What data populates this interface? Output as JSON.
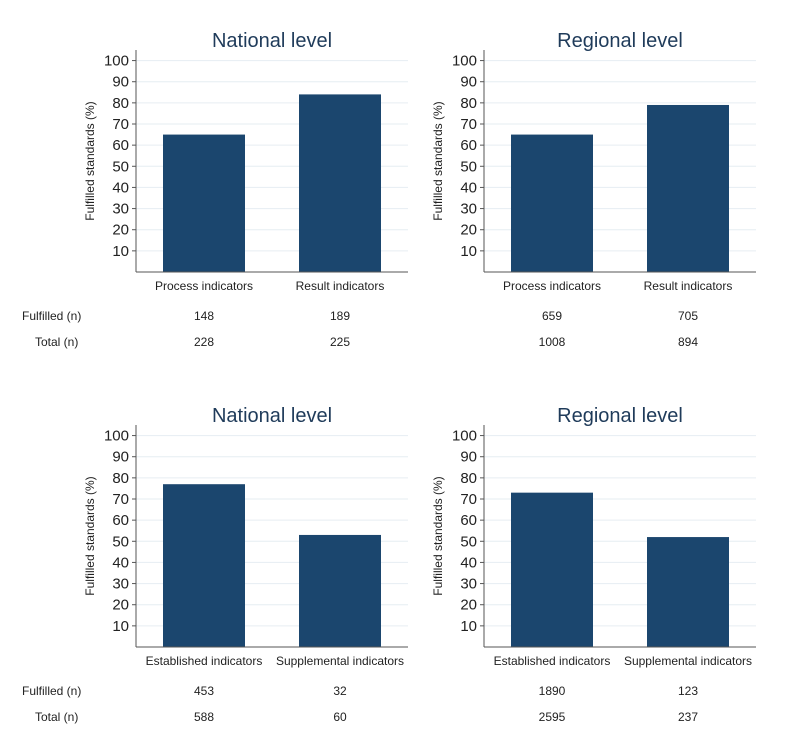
{
  "row_labels": {
    "fulfilled": "Fulfilled (n)",
    "total": "Total (n)"
  },
  "colors": {
    "bar": "#1b466e",
    "grid": "#e6edf2",
    "axis": "#555555",
    "text": "#222222",
    "title": "#1f3b5a"
  },
  "chart_data": [
    {
      "type": "bar",
      "title": "National level",
      "ylabel": "Fulfilled standards (%)",
      "xlabel": "",
      "ylim": [
        0,
        105
      ],
      "yticks": [
        10,
        20,
        30,
        40,
        50,
        60,
        70,
        80,
        90,
        100
      ],
      "grid": true,
      "categories": [
        "Process indicators",
        "Result indicators"
      ],
      "values": [
        65,
        84
      ],
      "fulfilled_n": [
        "148",
        "189"
      ],
      "total_n": [
        "228",
        "225"
      ]
    },
    {
      "type": "bar",
      "title": "Regional level",
      "ylabel": "Fulfilled standards (%)",
      "xlabel": "",
      "ylim": [
        0,
        105
      ],
      "yticks": [
        10,
        20,
        30,
        40,
        50,
        60,
        70,
        80,
        90,
        100
      ],
      "grid": true,
      "categories": [
        "Process indicators",
        "Result indicators"
      ],
      "values": [
        65,
        79
      ],
      "fulfilled_n": [
        "659",
        "705"
      ],
      "total_n": [
        "1008",
        "894"
      ]
    },
    {
      "type": "bar",
      "title": "National level",
      "ylabel": "Fulfilled standards (%)",
      "xlabel": "",
      "ylim": [
        0,
        105
      ],
      "yticks": [
        10,
        20,
        30,
        40,
        50,
        60,
        70,
        80,
        90,
        100
      ],
      "grid": true,
      "categories": [
        "Established indicators",
        "Supplemental indicators"
      ],
      "values": [
        77,
        53
      ],
      "fulfilled_n": [
        "453",
        "32"
      ],
      "total_n": [
        "588",
        "60"
      ]
    },
    {
      "type": "bar",
      "title": "Regional level",
      "ylabel": "Fulfilled standards (%)",
      "xlabel": "",
      "ylim": [
        0,
        105
      ],
      "yticks": [
        10,
        20,
        30,
        40,
        50,
        60,
        70,
        80,
        90,
        100
      ],
      "grid": true,
      "categories": [
        "Established indicators",
        "Supplemental indicators"
      ],
      "values": [
        73,
        52
      ],
      "fulfilled_n": [
        "1890",
        "123"
      ],
      "total_n": [
        "2595",
        "237"
      ]
    }
  ]
}
